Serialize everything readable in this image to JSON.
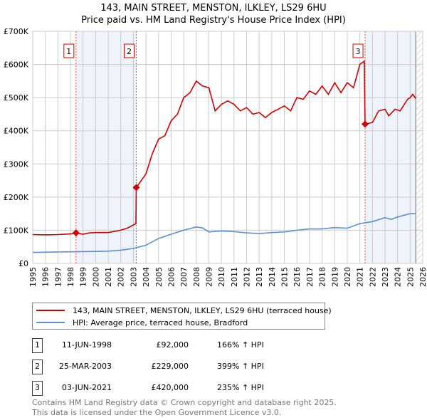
{
  "header": {
    "title": "143, MAIN STREET, MENSTON, ILKLEY, LS29 6HU",
    "subtitle": "Price paid vs. HM Land Registry's House Price Index (HPI)"
  },
  "chart_data": {
    "type": "line",
    "title": "143, MAIN STREET, MENSTON, ILKLEY, LS29 6HU",
    "subtitle": "Price paid vs. HM Land Registry's House Price Index (HPI)",
    "xlim": [
      1995,
      2026
    ],
    "ylim": [
      0,
      700000
    ],
    "x_ticks": [
      "1995",
      "1996",
      "1997",
      "1998",
      "1999",
      "2000",
      "2001",
      "2002",
      "2003",
      "2004",
      "2005",
      "2006",
      "2007",
      "2008",
      "2009",
      "2010",
      "2011",
      "2012",
      "2013",
      "2014",
      "2015",
      "2016",
      "2017",
      "2018",
      "2019",
      "2020",
      "2021",
      "2022",
      "2023",
      "2024",
      "2025",
      "2026"
    ],
    "y_ticks": [
      {
        "v": 0,
        "label": "£0"
      },
      {
        "v": 100000,
        "label": "£100K"
      },
      {
        "v": 200000,
        "label": "£200K"
      },
      {
        "v": 300000,
        "label": "£300K"
      },
      {
        "v": 400000,
        "label": "£400K"
      },
      {
        "v": 500000,
        "label": "£500K"
      },
      {
        "v": 600000,
        "label": "£600K"
      },
      {
        "v": 700000,
        "label": "£700K"
      }
    ],
    "grid": true,
    "series": [
      {
        "name": "143, MAIN STREET, MENSTON, ILKLEY, LS29 6HU (terraced house)",
        "color": "#cc0000",
        "x": [
          1995,
          1996,
          1997,
          1998,
          1998.44,
          1999,
          1999.5,
          2000,
          2001,
          2002,
          2002.5,
          2003.2,
          2003.23,
          2004,
          2004.5,
          2005,
          2005.5,
          2006,
          2006.5,
          2007,
          2007.5,
          2008,
          2008.5,
          2009,
          2009.5,
          2010,
          2010.5,
          2011,
          2011.5,
          2012,
          2012.5,
          2013,
          2013.5,
          2014,
          2014.5,
          2015,
          2015.5,
          2016,
          2016.5,
          2017,
          2017.5,
          2018,
          2018.5,
          2019,
          2019.5,
          2020,
          2020.5,
          2021,
          2021.35,
          2021.42,
          2022,
          2022.5,
          2023,
          2023.3,
          2023.8,
          2024.2,
          2024.8,
          2025,
          2025.2,
          2025.45
        ],
        "values": [
          87000,
          86000,
          87000,
          89000,
          92000,
          88000,
          92000,
          93000,
          93000,
          100000,
          106000,
          120000,
          229000,
          270000,
          330000,
          375000,
          385000,
          430000,
          450000,
          500000,
          515000,
          550000,
          535000,
          530000,
          460000,
          480000,
          490000,
          480000,
          460000,
          470000,
          450000,
          455000,
          440000,
          455000,
          465000,
          475000,
          460000,
          500000,
          495000,
          520000,
          510000,
          535000,
          510000,
          545000,
          515000,
          545000,
          530000,
          600000,
          610000,
          420000,
          425000,
          460000,
          465000,
          445000,
          465000,
          460000,
          495000,
          500000,
          510000,
          497000
        ]
      },
      {
        "name": "HPI: Average price, terraced house, Bradford",
        "color": "#5b8fd6",
        "x": [
          1995,
          1998,
          2000,
          2001,
          2002,
          2003,
          2004,
          2005,
          2006,
          2007,
          2008,
          2008.5,
          2009,
          2010,
          2011,
          2012,
          2013,
          2014,
          2015,
          2016,
          2017,
          2018,
          2019,
          2020,
          2021,
          2022,
          2023,
          2023.5,
          2024,
          2025,
          2025.45
        ],
        "values": [
          33000,
          35000,
          36000,
          37000,
          40000,
          45000,
          55000,
          75000,
          88000,
          100000,
          110000,
          107000,
          95000,
          98000,
          96000,
          92000,
          90000,
          93000,
          95000,
          100000,
          104000,
          104000,
          108000,
          106000,
          120000,
          126000,
          138000,
          133000,
          140000,
          150000,
          150000
        ]
      }
    ],
    "sales": [
      {
        "label": "1",
        "x": 1998.44,
        "value": 92000,
        "date": "11-JUN-1998",
        "price": "£92,000",
        "hpi": "166% ↑ HPI"
      },
      {
        "label": "2",
        "x": 2003.23,
        "value": 229000,
        "date": "25-MAR-2003",
        "price": "£229,000",
        "hpi": "399% ↑ HPI"
      },
      {
        "label": "3",
        "x": 2021.42,
        "value": 420000,
        "date": "03-JUN-2021",
        "price": "£420,000",
        "hpi": "235% ↑ HPI"
      }
    ],
    "shaded_ranges": [
      [
        1998.44,
        2003.23
      ],
      [
        2021.42,
        2025.45
      ]
    ],
    "hatched_from": 2025.45
  },
  "legend": {
    "items": [
      "143, MAIN STREET, MENSTON, ILKLEY, LS29 6HU (terraced house)",
      "HPI: Average price, terraced house, Bradford"
    ]
  },
  "footer": {
    "line1": "Contains HM Land Registry data © Crown copyright and database right 2025.",
    "line2": "This data is licensed under the Open Government Licence v3.0."
  }
}
